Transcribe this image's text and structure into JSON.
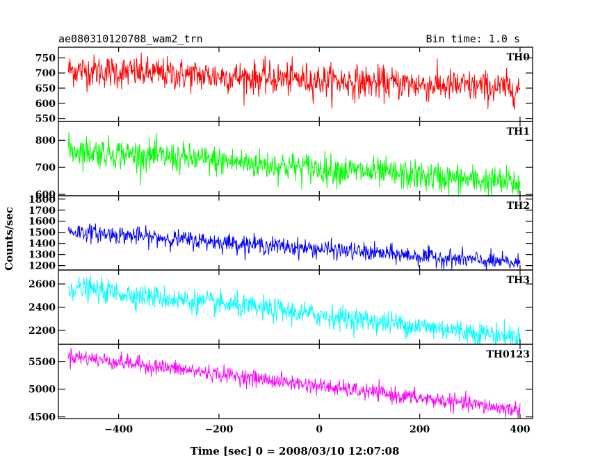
{
  "header": {
    "title": "ae080310120708_wam2_trn",
    "bin_time": "Bin time: 1.0 s"
  },
  "chart_data": {
    "type": "line",
    "xlabel": "Time [sec] 0 = 2008/03/10 12:07:08",
    "ylabel": "Counts/sec",
    "xlim": [
      -520,
      425
    ],
    "x_start": -500,
    "x_end": 400,
    "bin_time_sec": 1.0,
    "x_ticks": [
      -400,
      -200,
      0,
      200,
      400
    ],
    "x_tick_labels": [
      "−400",
      "−200",
      "0",
      "200",
      "400"
    ],
    "panels": [
      {
        "name": "TH0",
        "color": "#ff0000",
        "ylim": [
          540,
          785
        ],
        "y_ticks": [
          550,
          600,
          650,
          700,
          750
        ],
        "trend_start": 710,
        "trend_end": 648,
        "noise_sigma": 27
      },
      {
        "name": "TH1",
        "color": "#00ff00",
        "ylim": [
          595,
          870
        ],
        "y_ticks": [
          600,
          700,
          800
        ],
        "trend_start": 765,
        "trend_end": 640,
        "noise_sigma": 28
      },
      {
        "name": "TH2",
        "color": "#0000ff",
        "ylim": [
          1160,
          1830
        ],
        "y_ticks": [
          1200,
          1300,
          1400,
          1500,
          1600,
          1700,
          1800
        ],
        "trend_start": 1510,
        "trend_end": 1220,
        "noise_sigma": 40
      },
      {
        "name": "TH3",
        "color": "#00ffff",
        "ylim": [
          2080,
          2720
        ],
        "y_ticks": [
          2200,
          2400,
          2600
        ],
        "trend_start": 2570,
        "trend_end": 2140,
        "noise_sigma": 50
      },
      {
        "name": "TH0123",
        "color": "#ff00ff",
        "ylim": [
          4470,
          5810
        ],
        "y_ticks": [
          4500,
          5000,
          5500
        ],
        "trend_start": 5600,
        "trend_end": 4620,
        "noise_sigma": 72
      }
    ]
  }
}
